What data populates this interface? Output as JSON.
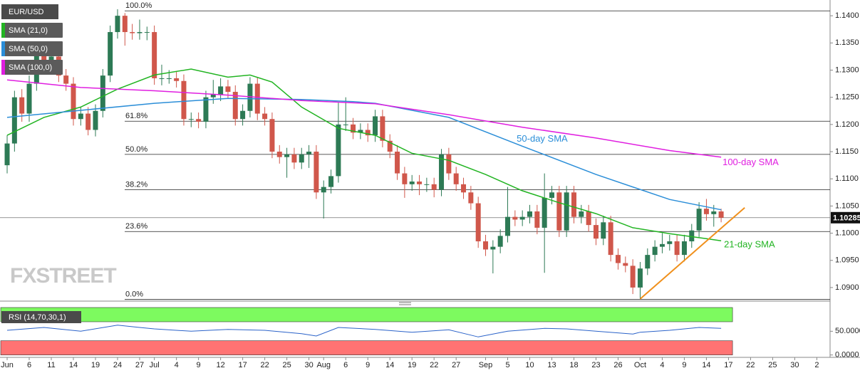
{
  "chart_data": [
    {
      "type": "candlestick",
      "title": "EUR/USD",
      "up_color": "#2d7a55",
      "down_color": "#d0574b",
      "xlim": [
        -0.97,
        111.8
      ],
      "xticks": [
        {
          "value": 0,
          "label": "Jun"
        },
        {
          "value": 3,
          "label": "6"
        },
        {
          "value": 6,
          "label": "11"
        },
        {
          "value": 9,
          "label": "14"
        },
        {
          "value": 12,
          "label": "19"
        },
        {
          "value": 15,
          "label": "24"
        },
        {
          "value": 18,
          "label": "27"
        },
        {
          "value": 20,
          "label": "Jul"
        },
        {
          "value": 23,
          "label": "4"
        },
        {
          "value": 26,
          "label": "9"
        },
        {
          "value": 29,
          "label": "12"
        },
        {
          "value": 32,
          "label": "17"
        },
        {
          "value": 35,
          "label": "22"
        },
        {
          "value": 38,
          "label": "25"
        },
        {
          "value": 41,
          "label": "30"
        },
        {
          "value": 43,
          "label": "Aug"
        },
        {
          "value": 46,
          "label": "6"
        },
        {
          "value": 49,
          "label": "9"
        },
        {
          "value": 52,
          "label": "14"
        },
        {
          "value": 55,
          "label": "19"
        },
        {
          "value": 58,
          "label": "22"
        },
        {
          "value": 61,
          "label": "27"
        },
        {
          "value": 65,
          "label": "Sep"
        },
        {
          "value": 68,
          "label": "5"
        },
        {
          "value": 71,
          "label": "10"
        },
        {
          "value": 74,
          "label": "13"
        },
        {
          "value": 77,
          "label": "18"
        },
        {
          "value": 80,
          "label": "23"
        },
        {
          "value": 83,
          "label": "26"
        },
        {
          "value": 86,
          "label": "Oct"
        },
        {
          "value": 89,
          "label": "4"
        },
        {
          "value": 92,
          "label": "9"
        },
        {
          "value": 95,
          "label": "14"
        },
        {
          "value": 98,
          "label": "17"
        },
        {
          "value": 101,
          "label": "22"
        },
        {
          "value": 104,
          "label": "25"
        },
        {
          "value": 107,
          "label": "30"
        },
        {
          "value": 110,
          "label": "2"
        }
      ],
      "ylim": [
        1.0875,
        1.1429
      ],
      "yticks": [
        {
          "value": 1.14,
          "label": "1.1400"
        },
        {
          "value": 1.135,
          "label": "1.1350"
        },
        {
          "value": 1.13,
          "label": "1.1300"
        },
        {
          "value": 1.125,
          "label": "1.1250"
        },
        {
          "value": 1.12,
          "label": "1.1200"
        },
        {
          "value": 1.115,
          "label": "1.1150"
        },
        {
          "value": 1.11,
          "label": "1.1100"
        },
        {
          "value": 1.105,
          "label": "1.1050"
        },
        {
          "value": 1.1,
          "label": "1.1000"
        },
        {
          "value": 1.095,
          "label": "1.0950"
        },
        {
          "value": 1.09,
          "label": "1.0900"
        }
      ],
      "open": [
        1.1125,
        1.1165,
        1.125,
        1.122,
        1.1275,
        1.1335,
        1.131,
        1.1325,
        1.129,
        1.1275,
        1.121,
        1.122,
        1.119,
        1.1225,
        1.129,
        1.137,
        1.14,
        1.137,
        1.1368,
        1.137,
        1.137,
        1.1285,
        1.1285,
        1.1285,
        1.128,
        1.121,
        1.121,
        1.1205,
        1.125,
        1.1255,
        1.127,
        1.126,
        1.121,
        1.1225,
        1.1275,
        1.122,
        1.121,
        1.115,
        1.114,
        1.1145,
        1.113,
        1.1145,
        1.115,
        1.1075,
        1.1085,
        1.1105,
        1.12,
        1.12,
        1.1185,
        1.119,
        1.118,
        1.1215,
        1.117,
        1.115,
        1.111,
        1.109,
        1.1095,
        1.109,
        1.109,
        1.108,
        1.1145,
        1.111,
        1.109,
        1.1075,
        1.1055,
        1.0985,
        1.097,
        1.0975,
        1.0995,
        1.103,
        1.1025,
        1.103,
        1.104,
        1.101,
        1.1065,
        1.1075,
        1.1005,
        1.1075,
        1.103,
        1.104,
        1.1015,
        1.099,
        1.102,
        1.096,
        1.0945,
        1.094,
        1.09,
        1.0935,
        1.096,
        1.0975,
        1.098,
        1.0985,
        1.096,
        1.0985,
        1.1005,
        1.1045,
        1.1035,
        1.104
      ],
      "high": [
        1.118,
        1.1262,
        1.1265,
        1.129,
        1.1347,
        1.1347,
        1.134,
        1.1337,
        1.1302,
        1.1287,
        1.1232,
        1.1232,
        1.1237,
        1.1302,
        1.1382,
        1.1412,
        1.1405,
        1.1385,
        1.1393,
        1.138,
        1.1382,
        1.131,
        1.13,
        1.1297,
        1.1292,
        1.1222,
        1.1222,
        1.1262,
        1.1282,
        1.1285,
        1.1282,
        1.1272,
        1.1237,
        1.1287,
        1.1287,
        1.1232,
        1.1222,
        1.1162,
        1.1157,
        1.1157,
        1.1157,
        1.1162,
        1.1162,
        1.1097,
        1.1117,
        1.124,
        1.125,
        1.1212,
        1.1202,
        1.1202,
        1.1227,
        1.1227,
        1.1182,
        1.1162,
        1.1122,
        1.1107,
        1.1107,
        1.1102,
        1.1102,
        1.1155,
        1.1157,
        1.1122,
        1.1102,
        1.1087,
        1.1067,
        1.0997,
        1.0987,
        1.1007,
        1.1085,
        1.1042,
        1.1042,
        1.1052,
        1.1052,
        1.111,
        1.1087,
        1.1087,
        1.1087,
        1.1087,
        1.1052,
        1.1052,
        1.1027,
        1.1032,
        1.1032,
        1.0972,
        1.0957,
        1.0952,
        1.0947,
        1.0972,
        1.0987,
        1.1,
        1.0997,
        1.0997,
        1.0997,
        1.1017,
        1.1057,
        1.1063,
        1.1052,
        1.1045
      ],
      "low": [
        1.111,
        1.115,
        1.1205,
        1.1205,
        1.1262,
        1.1295,
        1.1295,
        1.1278,
        1.1262,
        1.1198,
        1.1198,
        1.118,
        1.1178,
        1.1213,
        1.1278,
        1.1358,
        1.1345,
        1.1356,
        1.1356,
        1.1355,
        1.1273,
        1.1272,
        1.1275,
        1.1268,
        1.1198,
        1.1195,
        1.1193,
        1.1193,
        1.1238,
        1.1243,
        1.1248,
        1.1198,
        1.1198,
        1.1213,
        1.1208,
        1.1198,
        1.1138,
        1.1128,
        1.1102,
        1.1118,
        1.1118,
        1.112,
        1.1063,
        1.1027,
        1.1073,
        1.1093,
        1.1188,
        1.1173,
        1.1173,
        1.1168,
        1.1168,
        1.1158,
        1.1138,
        1.1098,
        1.1065,
        1.1078,
        1.107,
        1.1076,
        1.1066,
        1.1068,
        1.1098,
        1.1078,
        1.1063,
        1.1043,
        1.0973,
        1.0958,
        1.0926,
        1.0963,
        1.0983,
        1.1013,
        1.1013,
        1.1018,
        1.0998,
        1.0927,
        1.1053,
        1.0993,
        1.0993,
        1.1018,
        1.1018,
        1.1003,
        1.0978,
        1.0978,
        1.0948,
        1.0933,
        1.0928,
        1.0888,
        1.0879,
        1.0923,
        1.0948,
        1.0963,
        1.0968,
        1.0948,
        1.0948,
        1.0973,
        1.0993,
        1.1023,
        1.1012,
        1.102
      ],
      "close": [
        1.1165,
        1.125,
        1.122,
        1.1275,
        1.1335,
        1.131,
        1.1325,
        1.129,
        1.1275,
        1.121,
        1.122,
        1.119,
        1.1225,
        1.129,
        1.137,
        1.14,
        1.137,
        1.1368,
        1.137,
        1.137,
        1.1285,
        1.1285,
        1.1285,
        1.128,
        1.121,
        1.121,
        1.1205,
        1.125,
        1.1255,
        1.127,
        1.126,
        1.121,
        1.1225,
        1.1275,
        1.122,
        1.121,
        1.115,
        1.114,
        1.1145,
        1.113,
        1.1145,
        1.115,
        1.1075,
        1.1085,
        1.1105,
        1.12,
        1.12,
        1.1185,
        1.119,
        1.118,
        1.1215,
        1.117,
        1.115,
        1.111,
        1.109,
        1.1095,
        1.109,
        1.109,
        1.108,
        1.1145,
        1.111,
        1.109,
        1.1075,
        1.1055,
        1.0985,
        1.097,
        1.0975,
        1.0995,
        1.103,
        1.1025,
        1.103,
        1.104,
        1.101,
        1.1065,
        1.1075,
        1.1005,
        1.1075,
        1.103,
        1.104,
        1.1015,
        1.099,
        1.102,
        1.096,
        1.0945,
        1.094,
        1.09,
        1.0935,
        1.096,
        1.0975,
        1.098,
        1.0985,
        1.096,
        1.0985,
        1.1005,
        1.1045,
        1.1035,
        1.104,
        1.10285
      ],
      "series": [
        {
          "name": "SMA (21,0)",
          "label": "21-day SMA",
          "color": "#22b422",
          "x": [
            0,
            5,
            10,
            15,
            20,
            25,
            30,
            33,
            36,
            40,
            45,
            50,
            55,
            60,
            65,
            70,
            75,
            80,
            85,
            90,
            95,
            97
          ],
          "values": [
            1.118,
            1.1213,
            1.1232,
            1.1265,
            1.1291,
            1.1302,
            1.1287,
            1.1291,
            1.1278,
            1.1232,
            1.1193,
            1.118,
            1.1147,
            1.1134,
            1.1108,
            1.1078,
            1.1056,
            1.1036,
            1.101,
            1.0999,
            1.099,
            1.0986
          ]
        },
        {
          "name": "SMA (50,0)",
          "label": "50-day SMA",
          "color": "#2b8ed8",
          "x": [
            0,
            10,
            20,
            30,
            40,
            47,
            50,
            60,
            70,
            80,
            90,
            97
          ],
          "values": [
            1.1213,
            1.1226,
            1.1239,
            1.1248,
            1.1246,
            1.1242,
            1.1239,
            1.1213,
            1.116,
            1.1108,
            1.1062,
            1.1043
          ]
        },
        {
          "name": "SMA (100,0)",
          "label": "100-day SMA",
          "color": "#e01ee0",
          "x": [
            0,
            10,
            20,
            30,
            40,
            50,
            60,
            70,
            80,
            90,
            97
          ],
          "values": [
            1.1282,
            1.1268,
            1.1262,
            1.1254,
            1.1244,
            1.1238,
            1.1218,
            1.1195,
            1.1175,
            1.1152,
            1.114
          ]
        }
      ],
      "fib_levels": [
        {
          "label": "100.0%",
          "value": 1.1409
        },
        {
          "label": "61.8%",
          "value": 1.1206
        },
        {
          "label": "50.0%",
          "value": 1.1145
        },
        {
          "label": "38.2%",
          "value": 1.108
        },
        {
          "label": "23.6%",
          "value": 1.1003
        },
        {
          "label": "0.0%",
          "value": 1.0878
        }
      ],
      "trendline": {
        "color": "#f0901c",
        "x": [
          86,
          100.2
        ],
        "values": [
          1.0879,
          1.1047
        ]
      },
      "last_price": 1.10285,
      "watermark": "FXSTREET"
    },
    {
      "type": "line",
      "title": "RSI (14,70,30,1)",
      "color": "#2a62c9",
      "xlim": [
        -0.97,
        111.8
      ],
      "ylim": [
        -5,
        106
      ],
      "yticks": [
        {
          "value": 50,
          "label": "50.0000"
        },
        {
          "value": 0,
          "label": "0.0000"
        }
      ],
      "bands": [
        {
          "from": 70,
          "to": 100,
          "color": "#7dfa5f"
        },
        {
          "from": 0,
          "to": 30,
          "color": "#ff7373"
        }
      ],
      "x": [
        0,
        5,
        10,
        15,
        18,
        20,
        25,
        30,
        35,
        40,
        42,
        45,
        50,
        55,
        60,
        64,
        68,
        73,
        76,
        80,
        85,
        86,
        90,
        94,
        97
      ],
      "values": [
        52,
        58,
        50,
        63,
        58,
        55,
        50,
        54,
        52,
        45,
        40,
        58,
        54,
        48,
        53,
        38,
        50,
        56,
        55,
        50,
        44,
        48,
        52,
        58,
        56
      ]
    }
  ]
}
